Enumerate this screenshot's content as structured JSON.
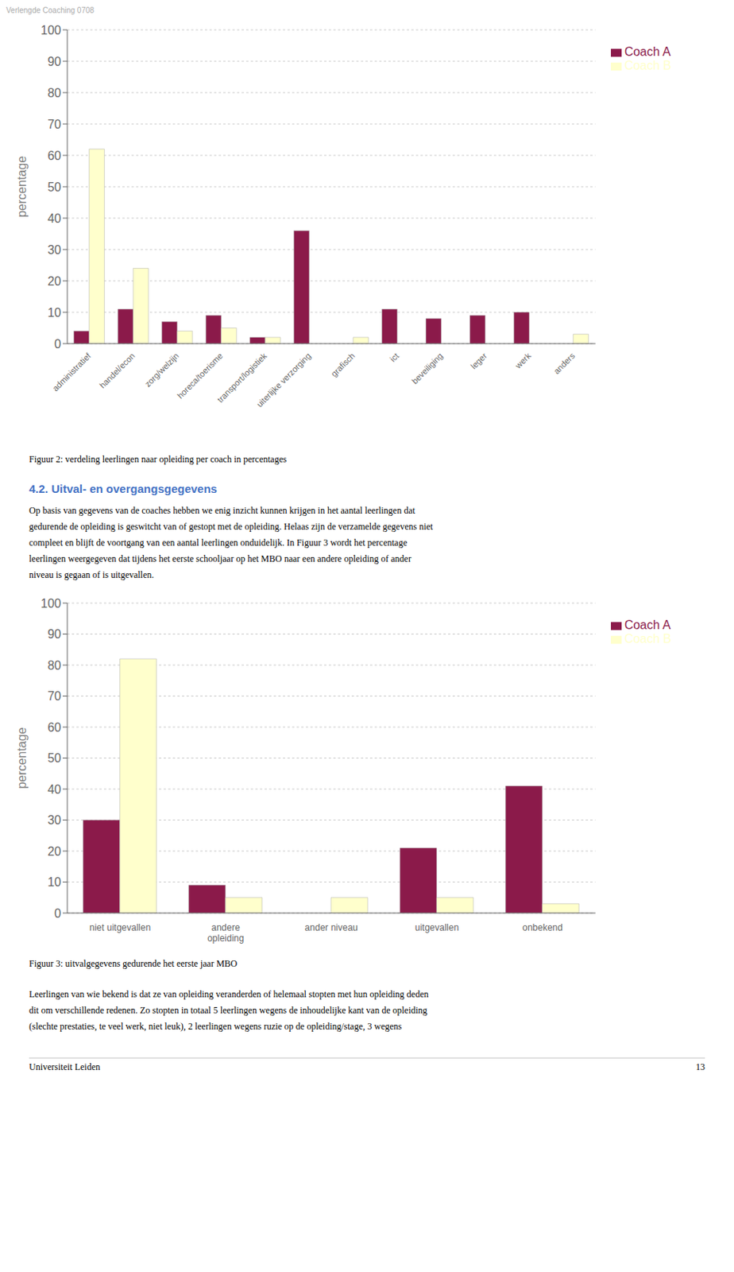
{
  "header": "Verlengde Coaching 0708",
  "section_title": "4.2. Uitval- en overgangsgegevens",
  "section_text": "Op basis van gegevens van de coaches hebben we enig inzicht kunnen krijgen in het aantal leerlingen dat\ngedurende de opleiding is geswitcht van of gestopt met de opleiding. Helaas zijn de verzamelde gegevens niet\ncompleet en blijft de voortgang van een aantal leerlingen onduidelijk. In Figuur 3 wordt het percentage\nleerlingen weergegeven dat tijdens het eerste schooljaar op het MBO naar een andere opleiding of ander\nniveau is gegaan of is uitgevallen.",
  "body_text": "Leerlingen van wie bekend is dat ze van opleiding veranderden of helemaal stopten met hun opleiding deden\ndit om verschillende redenen. Zo stopten in totaal 5 leerlingen wegens de inhoudelijke kant van de opleiding\n(slechte prestaties, te veel werk, niet leuk), 2 leerlingen wegens ruzie op de opleiding/stage, 3 wegens",
  "footer_left": "Universiteit Leiden",
  "footer_right": "13",
  "chart_data": [
    {
      "type": "bar",
      "title": "Figuur 2: verdeling leerlingen naar opleiding per coach in percentages",
      "categories": [
        "administratief",
        "handel/econ",
        "zorg/welzijn",
        "horeca/toerisme",
        "transport/logistiek",
        "uiterlijke verzorging",
        "grafisch",
        "ict",
        "beveiliging",
        "leger",
        "werk",
        "anders"
      ],
      "series": [
        {
          "name": "Coach A",
          "color": "#8B1A4A",
          "values": [
            4,
            11,
            7,
            9,
            2,
            36,
            0,
            11,
            8,
            9,
            10,
            0
          ]
        },
        {
          "name": "Coach B",
          "color": "#FFFFCC",
          "values": [
            62,
            24,
            4,
            5,
            2,
            0,
            2,
            0,
            0,
            0,
            0,
            3
          ]
        }
      ],
      "ylabel": "percentage",
      "ylim": [
        0,
        100
      ],
      "yticks": [
        0,
        10,
        20,
        30,
        40,
        50,
        60,
        70,
        80,
        90,
        100
      ],
      "grid": true,
      "legend": "right"
    },
    {
      "type": "bar",
      "title": "Figuur 3: uitvalgegevens gedurende het eerste jaar MBO",
      "categories": [
        "niet uitgevallen",
        "andere\nopleiding",
        "ander niveau",
        "uitgevallen",
        "onbekend"
      ],
      "series": [
        {
          "name": "Coach A",
          "color": "#8B1A4A",
          "values": [
            30,
            9,
            0,
            21,
            41
          ]
        },
        {
          "name": "Coach B",
          "color": "#FFFFCC",
          "values": [
            82,
            5,
            5,
            5,
            3
          ]
        }
      ],
      "ylabel": "percentage",
      "ylim": [
        0,
        100
      ],
      "yticks": [
        0,
        10,
        20,
        30,
        40,
        50,
        60,
        70,
        80,
        90,
        100
      ],
      "grid": true,
      "legend": "right"
    }
  ]
}
